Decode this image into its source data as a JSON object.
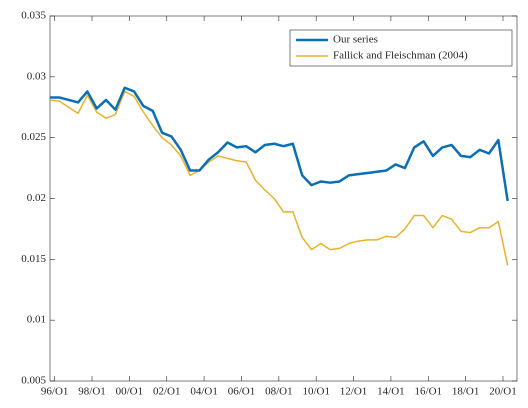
{
  "chart_data": {
    "type": "line",
    "x": [
      1995.75,
      1996.25,
      1996.75,
      1997.25,
      1997.75,
      1998.25,
      1998.75,
      1999.25,
      1999.75,
      2000.25,
      2000.75,
      2001.25,
      2001.75,
      2002.25,
      2002.75,
      2003.25,
      2003.75,
      2004.25,
      2004.75,
      2005.25,
      2005.75,
      2006.25,
      2006.75,
      2007.25,
      2007.75,
      2008.25,
      2008.75,
      2009.25,
      2009.75,
      2010.25,
      2010.75,
      2011.25,
      2011.75,
      2012.25,
      2012.75,
      2013.25,
      2013.75,
      2014.25,
      2014.75,
      2015.25,
      2015.75,
      2016.25,
      2016.75,
      2017.25,
      2017.75,
      2018.25,
      2018.75,
      2019.25,
      2019.75,
      2020.25
    ],
    "series": [
      {
        "name": "Our series",
        "color": "#0b6fb5",
        "width": 2.5,
        "values": [
          0.0283,
          0.0283,
          0.0281,
          0.0279,
          0.0288,
          0.0274,
          0.0281,
          0.0273,
          0.0291,
          0.0288,
          0.0276,
          0.0272,
          0.0254,
          0.0251,
          0.024,
          0.0223,
          0.0223,
          0.0232,
          0.0238,
          0.0246,
          0.0242,
          0.0243,
          0.0238,
          0.0244,
          0.0245,
          0.0243,
          0.0245,
          0.0219,
          0.0211,
          0.0214,
          0.0213,
          0.0214,
          0.0219,
          0.022,
          0.0221,
          0.0222,
          0.0223,
          0.0228,
          0.0225,
          0.0242,
          0.0247,
          0.0235,
          0.0242,
          0.0244,
          0.0235,
          0.0234,
          0.024,
          0.0237,
          0.0248,
          0.0198
        ]
      },
      {
        "name": "Fallick and Fleischman (2004)",
        "color": "#e8b22b",
        "width": 1.5,
        "values": [
          0.0281,
          0.028,
          0.0275,
          0.027,
          0.0285,
          0.0271,
          0.0266,
          0.0269,
          0.0288,
          0.0284,
          0.0271,
          0.026,
          0.025,
          0.0244,
          0.0235,
          0.0219,
          0.0223,
          0.023,
          0.0235,
          0.0233,
          0.0231,
          0.023,
          0.0215,
          0.0207,
          0.02,
          0.0189,
          0.0189,
          0.0168,
          0.0158,
          0.0163,
          0.0158,
          0.0159,
          0.0163,
          0.0165,
          0.0166,
          0.0166,
          0.0169,
          0.0168,
          0.0175,
          0.0186,
          0.0186,
          0.0176,
          0.0186,
          0.0183,
          0.0173,
          0.0172,
          0.0176,
          0.0176,
          0.0181,
          0.0145
        ]
      }
    ],
    "xlim": [
      1995.75,
      2020.75
    ],
    "xticks": [
      {
        "value": 1996,
        "label": "96/O1"
      },
      {
        "value": 1998,
        "label": "98/O1"
      },
      {
        "value": 2000,
        "label": "00/O1"
      },
      {
        "value": 2002,
        "label": "02/O1"
      },
      {
        "value": 2004,
        "label": "04/O1"
      },
      {
        "value": 2006,
        "label": "06/O1"
      },
      {
        "value": 2008,
        "label": "08/O1"
      },
      {
        "value": 2010,
        "label": "10/O1"
      },
      {
        "value": 2012,
        "label": "12/O1"
      },
      {
        "value": 2014,
        "label": "14/O1"
      },
      {
        "value": 2016,
        "label": "16/O1"
      },
      {
        "value": 2018,
        "label": "18/O1"
      },
      {
        "value": 2020,
        "label": "20/O1"
      }
    ],
    "ylim": [
      0.005,
      0.035
    ],
    "yticks": [
      0.005,
      0.01,
      0.015,
      0.02,
      0.025,
      0.03,
      0.035
    ],
    "legend": "top-right"
  }
}
